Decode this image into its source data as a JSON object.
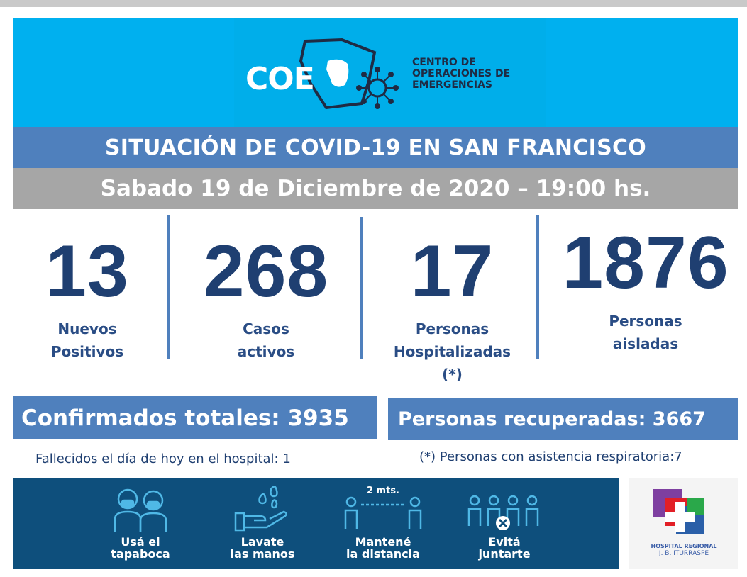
{
  "header": {
    "logo_text": "COE",
    "logo_subtitle_lines": [
      "CENTRO DE",
      "OPERACIONES DE",
      "EMERGENCIAS"
    ]
  },
  "title": "SITUACIÓN DE COVID-19 EN SAN FRANCISCO",
  "date": "Sabado 19 de Diciembre de 2020 – 19:00 hs.",
  "stats": [
    {
      "value": "13",
      "label_lines": [
        "Nuevos",
        "Positivos"
      ]
    },
    {
      "value": "268",
      "label_lines": [
        "Casos",
        "activos"
      ]
    },
    {
      "value": "17",
      "label_lines": [
        "Personas",
        "Hospitalizadas",
        "(*)"
      ]
    },
    {
      "value": "1876",
      "label_lines": [
        "Personas",
        "aisladas"
      ]
    }
  ],
  "totals": {
    "confirmed": "Confirmados totales: 3935",
    "recovered": "Personas recuperadas: 3667"
  },
  "notes": {
    "deaths": "Fallecidos el día de hoy en el hospital: 1",
    "respiratory": "(*) Personas con asistencia respiratoria:7"
  },
  "prevention": {
    "items": [
      {
        "icon": "mask-people-icon",
        "lines": [
          "Usá el",
          "tapaboca"
        ]
      },
      {
        "icon": "hand-wash-icon",
        "lines": [
          "Lavate",
          "las manos"
        ]
      },
      {
        "icon": "distance-icon",
        "lines": [
          "Mantené",
          "la distancia"
        ]
      },
      {
        "icon": "crowd-icon",
        "lines": [
          "Evitá",
          "juntarte"
        ]
      }
    ],
    "distance_tag": "2 mts."
  },
  "hospital": {
    "name_lines": [
      "HOSPITAL REGIONAL",
      "J. B. ITURRASPE"
    ]
  },
  "colors": {
    "header": "#00b0ef",
    "band_blue": "#4f80bd",
    "band_gray": "#a6a6a6",
    "number_navy": "#1f3f71",
    "prevention_bg": "#0e4f7c"
  }
}
